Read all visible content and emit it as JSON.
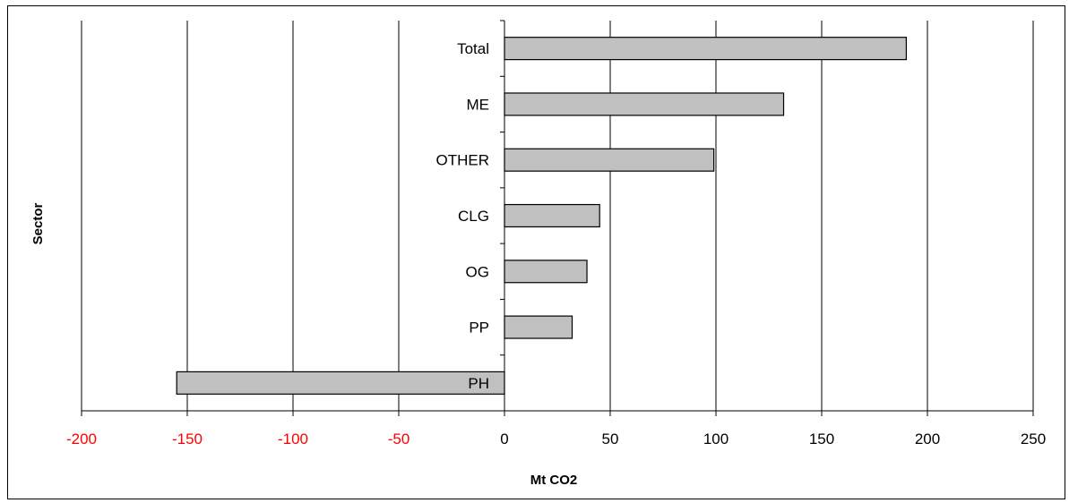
{
  "chart_data": {
    "type": "bar",
    "orientation": "horizontal",
    "categories": [
      "Total",
      "ME",
      "OTHER",
      "CLG",
      "OG",
      "PP",
      "PH"
    ],
    "values": [
      190,
      132,
      99,
      45,
      39,
      32,
      -155
    ],
    "xlabel": "Mt CO2",
    "ylabel": "Sector",
    "xlim": [
      -200,
      250
    ],
    "xticks": [
      "-200",
      "-150",
      "-100",
      "-50",
      "0",
      "50",
      "100",
      "150",
      "200",
      "250"
    ],
    "grid": "vertical",
    "legend": "none",
    "colors": {
      "bar_fill": "#c0c0c0",
      "bar_stroke": "#000000",
      "negative_tick_label": "#ff0000",
      "positive_tick_label": "#000000",
      "gridline": "#000000"
    }
  }
}
